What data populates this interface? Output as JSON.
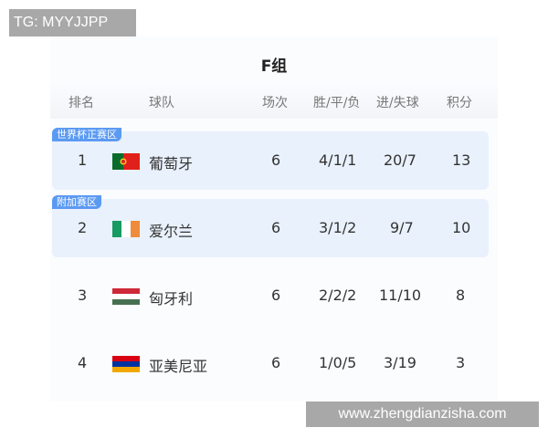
{
  "watermark_top": "TG: MYYJJPP",
  "watermark_bottom": "www.zhengdianzisha.com",
  "title": "F组",
  "headers": [
    "排名",
    "球队",
    "场次",
    "胜/平/负",
    "进/失球",
    "积分"
  ],
  "rows": [
    {
      "rank": "1",
      "team": "葡萄牙",
      "flag": "portugal-flag",
      "played": "6",
      "wdl": "4/1/1",
      "goals": "20/7",
      "points": "13",
      "badge": "世界杯正赛区"
    },
    {
      "rank": "2",
      "team": "爱尔兰",
      "flag": "ireland-flag",
      "played": "6",
      "wdl": "3/1/2",
      "goals": "9/7",
      "points": "10",
      "badge": "附加赛区"
    },
    {
      "rank": "3",
      "team": "匈牙利",
      "flag": "hungary-flag",
      "played": "6",
      "wdl": "2/2/2",
      "goals": "11/10",
      "points": "8"
    },
    {
      "rank": "4",
      "team": "亚美尼亚",
      "flag": "armenia-flag",
      "played": "6",
      "wdl": "1/0/5",
      "goals": "3/19",
      "points": "3"
    }
  ],
  "colors": {
    "badge": "#5b9af2",
    "highlight": "#e9f1fc"
  }
}
